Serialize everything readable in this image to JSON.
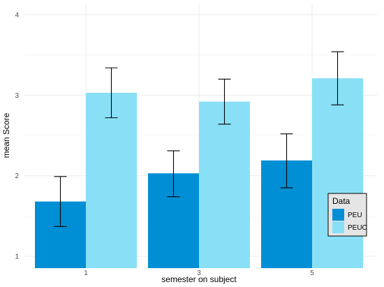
{
  "chart_data": {
    "type": "bar",
    "xlabel": "semester on subject",
    "ylabel": "mean Score",
    "categories": [
      "1",
      "3",
      "5"
    ],
    "y_ticks": [
      "1",
      "2",
      "3",
      "4"
    ],
    "ylim": [
      1,
      4
    ],
    "grid": true,
    "legend_title": "Data",
    "legend_position": "bottom-right",
    "series": [
      {
        "name": "PEU",
        "color": "#008fd5",
        "values": [
          1.68,
          2.03,
          2.19
        ],
        "error_low": [
          1.37,
          1.74,
          1.85
        ],
        "error_high": [
          1.99,
          2.31,
          2.52
        ]
      },
      {
        "name": "PEUC",
        "color": "#89e0f6",
        "values": [
          3.03,
          2.92,
          3.21
        ],
        "error_low": [
          2.72,
          2.64,
          2.88
        ],
        "error_high": [
          3.34,
          3.2,
          3.54
        ]
      }
    ]
  }
}
